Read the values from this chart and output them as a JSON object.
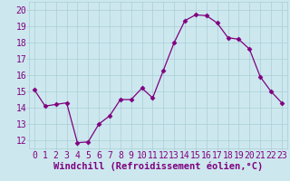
{
  "x": [
    0,
    1,
    2,
    3,
    4,
    5,
    6,
    7,
    8,
    9,
    10,
    11,
    12,
    13,
    14,
    15,
    16,
    17,
    18,
    19,
    20,
    21,
    22,
    23
  ],
  "y": [
    15.1,
    14.1,
    14.2,
    14.3,
    11.85,
    11.9,
    13.0,
    13.5,
    14.5,
    14.5,
    15.2,
    14.6,
    16.3,
    18.0,
    19.35,
    19.7,
    19.65,
    19.2,
    18.3,
    18.2,
    17.6,
    15.9,
    15.0,
    14.3
  ],
  "xlim": [
    -0.5,
    23.5
  ],
  "ylim": [
    11.5,
    20.5
  ],
  "yticks": [
    12,
    13,
    14,
    15,
    16,
    17,
    18,
    19,
    20
  ],
  "xticks": [
    0,
    1,
    2,
    3,
    4,
    5,
    6,
    7,
    8,
    9,
    10,
    11,
    12,
    13,
    14,
    15,
    16,
    17,
    18,
    19,
    20,
    21,
    22,
    23
  ],
  "xlabel": "Windchill (Refroidissement éolien,°C)",
  "line_color": "#800080",
  "marker": "D",
  "marker_size": 2.5,
  "bg_color": "#cce8ee",
  "grid_color": "#aacdd6",
  "tick_label_color": "#800080",
  "xlabel_fontsize": 7.5,
  "tick_fontsize": 7
}
